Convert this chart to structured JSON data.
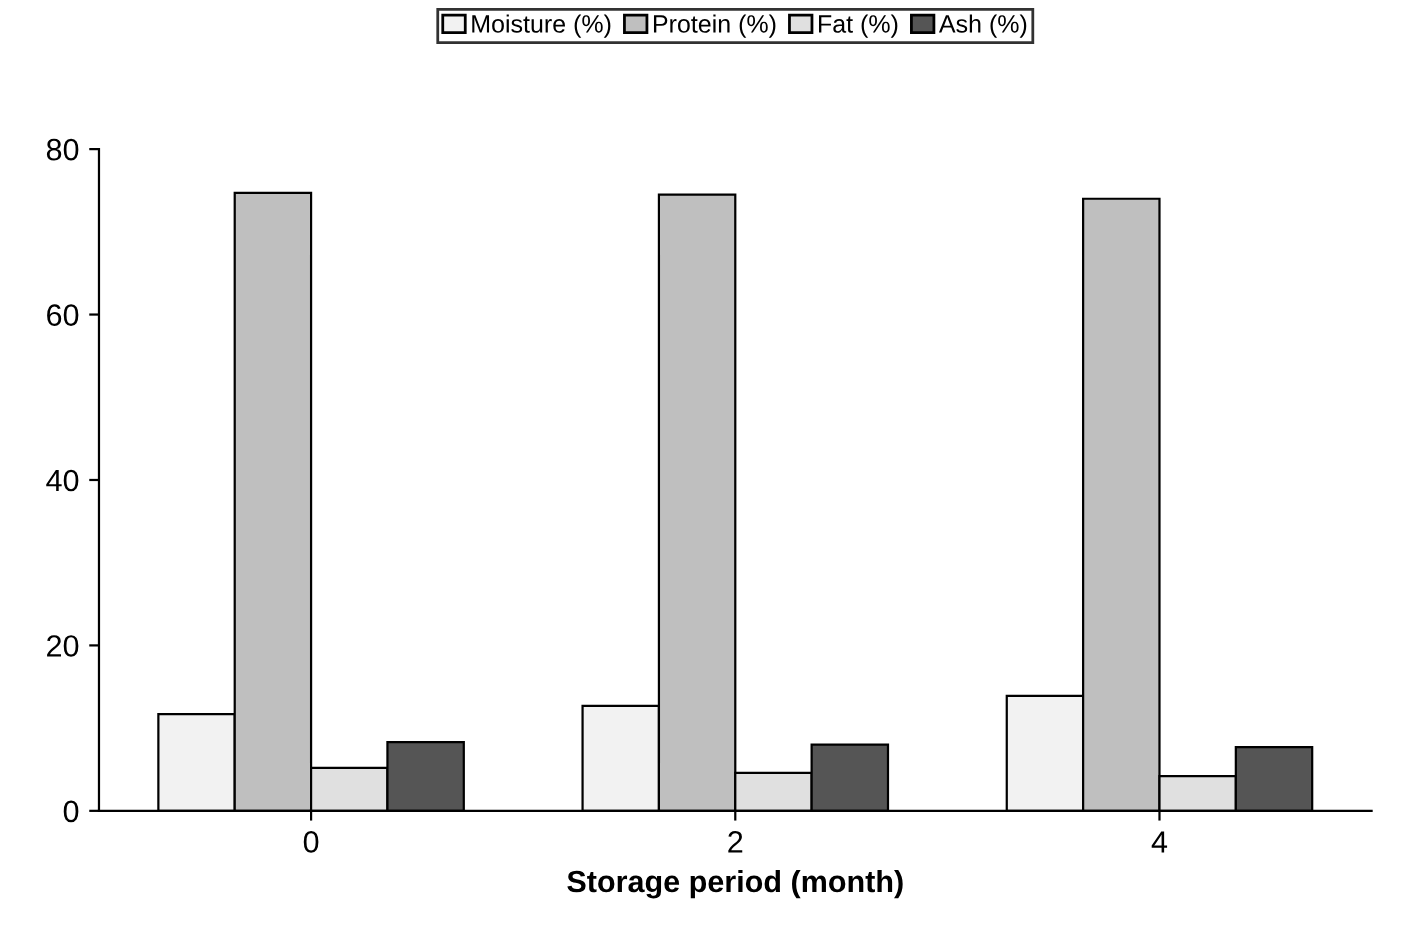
{
  "chart_data": {
    "type": "bar",
    "xlabel": "Storage period (month)",
    "categories": [
      "0",
      "2",
      "4"
    ],
    "series": [
      {
        "name": "Moisture (%)",
        "color": "#f2f2f2",
        "values": [
          11.7,
          12.7,
          13.9
        ]
      },
      {
        "name": "Protein (%)",
        "color": "#bfbfbf",
        "values": [
          74.7,
          74.5,
          74.0
        ]
      },
      {
        "name": "Fat (%)",
        "color": "#e0e0e0",
        "values": [
          5.2,
          4.6,
          4.2
        ]
      },
      {
        "name": "Ash (%)",
        "color": "#555555",
        "values": [
          8.3,
          8.0,
          7.7
        ]
      }
    ],
    "ylim": [
      0,
      80
    ],
    "yticks": [
      0,
      20,
      40,
      60,
      80
    ],
    "grid": false,
    "legend": "top"
  }
}
